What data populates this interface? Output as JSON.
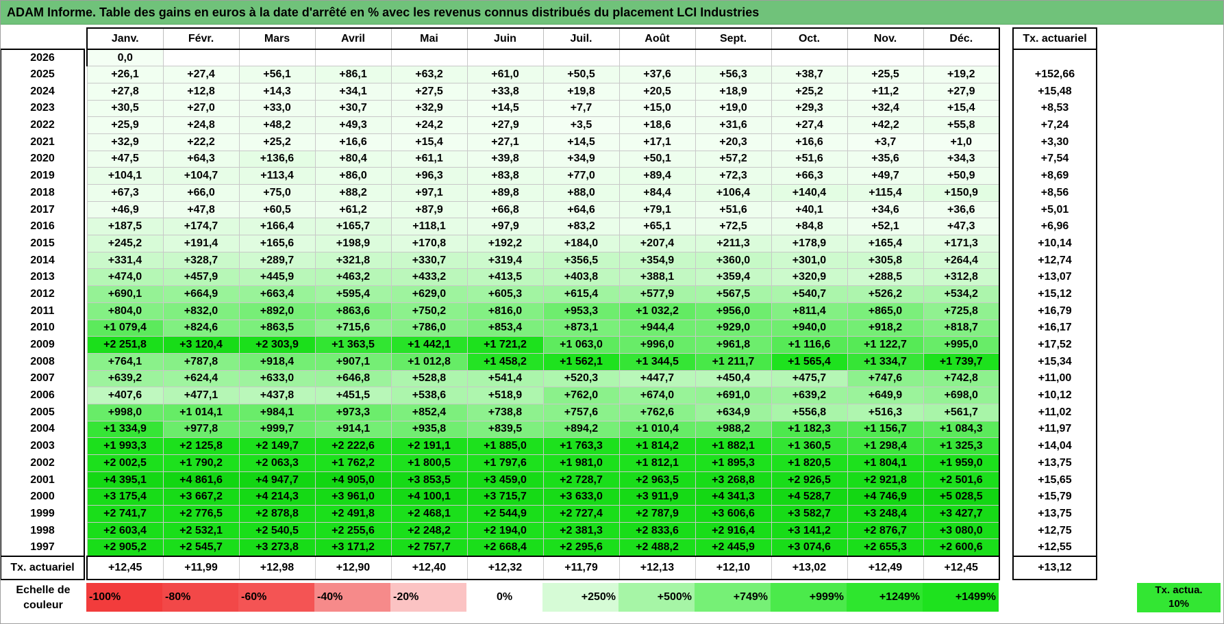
{
  "title": "ADAM Informe. Table des gains en euros à la date d'arrêté en % avec les revenus connus distribués du placement LCI Industries",
  "months": [
    "Janv.",
    "Févr.",
    "Mars",
    "Avril",
    "Mai",
    "Juin",
    "Juil.",
    "Août",
    "Sept.",
    "Oct.",
    "Nov.",
    "Déc."
  ],
  "actuarial_header": "Tx. actuariel",
  "rows": [
    {
      "year": "2026",
      "values": [
        "0,0",
        "",
        "",
        "",
        "",
        "",
        "",
        "",
        "",
        "",
        "",
        ""
      ],
      "actuarial": ""
    },
    {
      "year": "2025",
      "values": [
        "+26,1",
        "+27,4",
        "+56,1",
        "+86,1",
        "+63,2",
        "+61,0",
        "+50,5",
        "+37,6",
        "+56,3",
        "+38,7",
        "+25,5",
        "+19,2"
      ],
      "actuarial": "+152,66"
    },
    {
      "year": "2024",
      "values": [
        "+27,8",
        "+12,8",
        "+14,3",
        "+34,1",
        "+27,5",
        "+33,8",
        "+19,8",
        "+20,5",
        "+18,9",
        "+25,2",
        "+11,2",
        "+27,9"
      ],
      "actuarial": "+15,48"
    },
    {
      "year": "2023",
      "values": [
        "+30,5",
        "+27,0",
        "+33,0",
        "+30,7",
        "+32,9",
        "+14,5",
        "+7,7",
        "+15,0",
        "+19,0",
        "+29,3",
        "+32,4",
        "+15,4"
      ],
      "actuarial": "+8,53"
    },
    {
      "year": "2022",
      "values": [
        "+25,9",
        "+24,8",
        "+48,2",
        "+49,3",
        "+24,2",
        "+27,9",
        "+3,5",
        "+18,6",
        "+31,6",
        "+27,4",
        "+42,2",
        "+55,8"
      ],
      "actuarial": "+7,24"
    },
    {
      "year": "2021",
      "values": [
        "+32,9",
        "+22,2",
        "+25,2",
        "+16,6",
        "+15,4",
        "+27,1",
        "+14,5",
        "+17,1",
        "+20,3",
        "+16,6",
        "+3,7",
        "+1,0"
      ],
      "actuarial": "+3,30"
    },
    {
      "year": "2020",
      "values": [
        "+47,5",
        "+64,3",
        "+136,6",
        "+80,4",
        "+61,1",
        "+39,8",
        "+34,9",
        "+50,1",
        "+57,2",
        "+51,6",
        "+35,6",
        "+34,3"
      ],
      "actuarial": "+7,54"
    },
    {
      "year": "2019",
      "values": [
        "+104,1",
        "+104,7",
        "+113,4",
        "+86,0",
        "+96,3",
        "+83,8",
        "+77,0",
        "+89,4",
        "+72,3",
        "+66,3",
        "+49,7",
        "+50,9"
      ],
      "actuarial": "+8,69"
    },
    {
      "year": "2018",
      "values": [
        "+67,3",
        "+66,0",
        "+75,0",
        "+88,2",
        "+97,1",
        "+89,8",
        "+88,0",
        "+84,4",
        "+106,4",
        "+140,4",
        "+115,4",
        "+150,9"
      ],
      "actuarial": "+8,56"
    },
    {
      "year": "2017",
      "values": [
        "+46,9",
        "+47,8",
        "+60,5",
        "+61,2",
        "+87,9",
        "+66,8",
        "+64,6",
        "+79,1",
        "+51,6",
        "+40,1",
        "+34,6",
        "+36,6"
      ],
      "actuarial": "+5,01"
    },
    {
      "year": "2016",
      "values": [
        "+187,5",
        "+174,7",
        "+166,4",
        "+165,7",
        "+118,1",
        "+97,9",
        "+83,2",
        "+65,1",
        "+72,5",
        "+84,8",
        "+52,1",
        "+47,3"
      ],
      "actuarial": "+6,96"
    },
    {
      "year": "2015",
      "values": [
        "+245,2",
        "+191,4",
        "+165,6",
        "+198,9",
        "+170,8",
        "+192,2",
        "+184,0",
        "+207,4",
        "+211,3",
        "+178,9",
        "+165,4",
        "+171,3"
      ],
      "actuarial": "+10,14"
    },
    {
      "year": "2014",
      "values": [
        "+331,4",
        "+328,7",
        "+289,7",
        "+321,8",
        "+330,7",
        "+319,4",
        "+356,5",
        "+354,9",
        "+360,0",
        "+301,0",
        "+305,8",
        "+264,4"
      ],
      "actuarial": "+12,74"
    },
    {
      "year": "2013",
      "values": [
        "+474,0",
        "+457,9",
        "+445,9",
        "+463,2",
        "+433,2",
        "+413,5",
        "+403,8",
        "+388,1",
        "+359,4",
        "+320,9",
        "+288,5",
        "+312,8"
      ],
      "actuarial": "+13,07"
    },
    {
      "year": "2012",
      "values": [
        "+690,1",
        "+664,9",
        "+663,4",
        "+595,4",
        "+629,0",
        "+605,3",
        "+615,4",
        "+577,9",
        "+567,5",
        "+540,7",
        "+526,2",
        "+534,2"
      ],
      "actuarial": "+15,12"
    },
    {
      "year": "2011",
      "values": [
        "+804,0",
        "+832,0",
        "+892,0",
        "+863,6",
        "+750,2",
        "+816,0",
        "+953,3",
        "+1 032,2",
        "+956,0",
        "+811,4",
        "+865,0",
        "+725,8"
      ],
      "actuarial": "+16,79"
    },
    {
      "year": "2010",
      "values": [
        "+1 079,4",
        "+824,6",
        "+863,5",
        "+715,6",
        "+786,0",
        "+853,4",
        "+873,1",
        "+944,4",
        "+929,0",
        "+940,0",
        "+918,2",
        "+818,7"
      ],
      "actuarial": "+16,17"
    },
    {
      "year": "2009",
      "values": [
        "+2 251,8",
        "+3 120,4",
        "+2 303,9",
        "+1 363,5",
        "+1 442,1",
        "+1 721,2",
        "+1 063,0",
        "+996,0",
        "+961,8",
        "+1 116,6",
        "+1 122,7",
        "+995,0"
      ],
      "actuarial": "+17,52"
    },
    {
      "year": "2008",
      "values": [
        "+764,1",
        "+787,8",
        "+918,4",
        "+907,1",
        "+1 012,8",
        "+1 458,2",
        "+1 562,1",
        "+1 344,5",
        "+1 211,7",
        "+1 565,4",
        "+1 334,7",
        "+1 739,7"
      ],
      "actuarial": "+15,34"
    },
    {
      "year": "2007",
      "values": [
        "+639,2",
        "+624,4",
        "+633,0",
        "+646,8",
        "+528,8",
        "+541,4",
        "+520,3",
        "+447,7",
        "+450,4",
        "+475,7",
        "+747,6",
        "+742,8"
      ],
      "actuarial": "+11,00"
    },
    {
      "year": "2006",
      "values": [
        "+407,6",
        "+477,1",
        "+437,8",
        "+451,5",
        "+538,6",
        "+518,9",
        "+762,0",
        "+674,0",
        "+691,0",
        "+639,2",
        "+649,9",
        "+698,0"
      ],
      "actuarial": "+10,12"
    },
    {
      "year": "2005",
      "values": [
        "+998,0",
        "+1 014,1",
        "+984,1",
        "+973,3",
        "+852,4",
        "+738,8",
        "+757,6",
        "+762,6",
        "+634,9",
        "+556,8",
        "+516,3",
        "+561,7"
      ],
      "actuarial": "+11,02"
    },
    {
      "year": "2004",
      "values": [
        "+1 334,9",
        "+977,8",
        "+999,7",
        "+914,1",
        "+935,8",
        "+839,5",
        "+894,2",
        "+1 010,4",
        "+988,2",
        "+1 182,3",
        "+1 156,7",
        "+1 084,3"
      ],
      "actuarial": "+11,97"
    },
    {
      "year": "2003",
      "values": [
        "+1 993,3",
        "+2 125,8",
        "+2 149,7",
        "+2 222,6",
        "+2 191,1",
        "+1 885,0",
        "+1 763,3",
        "+1 814,2",
        "+1 882,1",
        "+1 360,5",
        "+1 298,4",
        "+1 325,3"
      ],
      "actuarial": "+14,04"
    },
    {
      "year": "2002",
      "values": [
        "+2 002,5",
        "+1 790,2",
        "+2 063,3",
        "+1 762,2",
        "+1 800,5",
        "+1 797,6",
        "+1 981,0",
        "+1 812,1",
        "+1 895,3",
        "+1 820,5",
        "+1 804,1",
        "+1 959,0"
      ],
      "actuarial": "+13,75"
    },
    {
      "year": "2001",
      "values": [
        "+4 395,1",
        "+4 861,6",
        "+4 947,7",
        "+4 905,0",
        "+3 853,5",
        "+3 459,0",
        "+2 728,7",
        "+2 963,5",
        "+3 268,8",
        "+2 926,5",
        "+2 921,8",
        "+2 501,6"
      ],
      "actuarial": "+15,65"
    },
    {
      "year": "2000",
      "values": [
        "+3 175,4",
        "+3 667,2",
        "+4 214,3",
        "+3 961,0",
        "+4 100,1",
        "+3 715,7",
        "+3 633,0",
        "+3 911,9",
        "+4 341,3",
        "+4 528,7",
        "+4 746,9",
        "+5 028,5"
      ],
      "actuarial": "+15,79"
    },
    {
      "year": "1999",
      "values": [
        "+2 741,7",
        "+2 776,5",
        "+2 878,8",
        "+2 491,8",
        "+2 468,1",
        "+2 544,9",
        "+2 727,4",
        "+2 787,9",
        "+3 606,6",
        "+3 582,7",
        "+3 248,4",
        "+3 427,7"
      ],
      "actuarial": "+13,75"
    },
    {
      "year": "1998",
      "values": [
        "+2 603,4",
        "+2 532,1",
        "+2 540,5",
        "+2 255,6",
        "+2 248,2",
        "+2 194,0",
        "+2 381,3",
        "+2 833,6",
        "+2 916,4",
        "+3 141,2",
        "+2 876,7",
        "+3 080,0"
      ],
      "actuarial": "+12,75"
    },
    {
      "year": "1997",
      "values": [
        "+2 905,2",
        "+2 545,7",
        "+3 273,8",
        "+3 171,2",
        "+2 757,7",
        "+2 668,4",
        "+2 295,6",
        "+2 488,2",
        "+2 445,9",
        "+3 074,6",
        "+2 655,3",
        "+2 600,6"
      ],
      "actuarial": "+12,55"
    }
  ],
  "footer": {
    "label": "Tx. actuariel",
    "values": [
      "+12,45",
      "+11,99",
      "+12,98",
      "+12,90",
      "+12,40",
      "+12,32",
      "+11,79",
      "+12,13",
      "+12,10",
      "+13,02",
      "+12,49",
      "+12,45"
    ],
    "total": "+13,12"
  },
  "legend": {
    "label": "Echelle de couleur",
    "items": [
      {
        "text": "-100%",
        "color": "#f23c3c",
        "kind": "neg"
      },
      {
        "text": "-80%",
        "color": "#f24848",
        "kind": "neg"
      },
      {
        "text": "-60%",
        "color": "#f45454",
        "kind": "neg"
      },
      {
        "text": "-40%",
        "color": "#f68a8a",
        "kind": "neg"
      },
      {
        "text": "-20%",
        "color": "#fbc3c3",
        "kind": "neg"
      },
      {
        "text": "0%",
        "color": "#ffffff",
        "kind": "zero"
      },
      {
        "text": "+250%",
        "color": "#d6fbd6",
        "kind": "pos"
      },
      {
        "text": "+500%",
        "color": "#a6f5a6",
        "kind": "pos"
      },
      {
        "text": "+749%",
        "color": "#76f076",
        "kind": "pos"
      },
      {
        "text": "+999%",
        "color": "#4bea4b",
        "kind": "pos"
      },
      {
        "text": "+1249%",
        "color": "#2ee62e",
        "kind": "pos"
      },
      {
        "text": "+1499%",
        "color": "#1ee21e",
        "kind": "pos"
      }
    ],
    "actuarial_swatch": "Tx. actua. 10%",
    "actuarial_color": "#33e633"
  }
}
